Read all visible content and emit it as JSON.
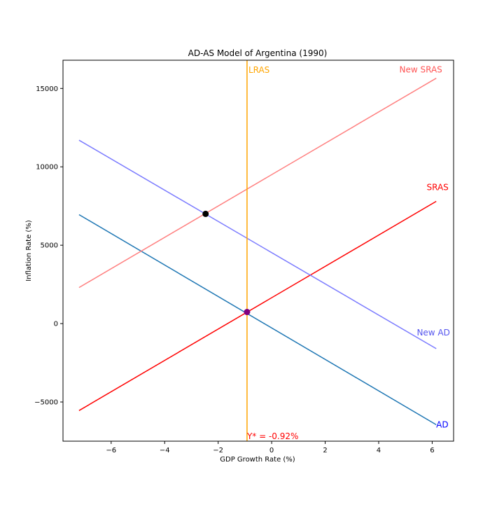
{
  "chart_data": {
    "type": "line",
    "title": "AD-AS Model of Argentina (1990)",
    "xlabel": "GDP Growth Rate (%)",
    "ylabel": "Inflation Rate (%)",
    "xlim": [
      -7.8,
      6.8
    ],
    "ylim": [
      -7500,
      16800
    ],
    "xticks": [
      -6,
      -4,
      -2,
      0,
      2,
      4,
      6
    ],
    "yticks": [
      -5000,
      0,
      5000,
      10000,
      15000
    ],
    "xtick_labels": [
      "−6",
      "−4",
      "−2",
      "0",
      "2",
      "4",
      "6"
    ],
    "ytick_labels": [
      "−5000",
      "0",
      "5000",
      "10000",
      "15000"
    ],
    "grid": false,
    "series": [
      {
        "name": "AD",
        "color": "#1f77b4",
        "label_color": "#0000ff",
        "x": [
          -7.2,
          6.15
        ],
        "y": [
          6950,
          -6450
        ]
      },
      {
        "name": "SRAS",
        "color": "#ff0000",
        "label_color": "#ff0000",
        "x": [
          -7.2,
          6.15
        ],
        "y": [
          -5550,
          7800
        ]
      },
      {
        "name": "New AD",
        "color": "#7b7bff",
        "label_color": "#5555ee",
        "x": [
          -7.2,
          6.15
        ],
        "y": [
          11700,
          -1600
        ]
      },
      {
        "name": "New SRAS",
        "color": "#ff7f7f",
        "label_color": "#ff5555",
        "x": [
          -7.2,
          6.15
        ],
        "y": [
          2300,
          15650
        ]
      },
      {
        "name": "LRAS",
        "color": "#ffa500",
        "label_color": "#ffa500",
        "x": [
          -0.92,
          -0.92
        ],
        "y": [
          -7500,
          16800
        ]
      }
    ],
    "points": [
      {
        "name": "initial-equilibrium",
        "x": -0.92,
        "y": 740,
        "color": "#800080"
      },
      {
        "name": "new-equilibrium",
        "x": -2.47,
        "y": 7000,
        "color": "#000000"
      }
    ],
    "annotations": [
      {
        "text": "Y* = -0.92%",
        "x": -0.92,
        "y": -7500,
        "color": "#ff0000"
      }
    ]
  }
}
